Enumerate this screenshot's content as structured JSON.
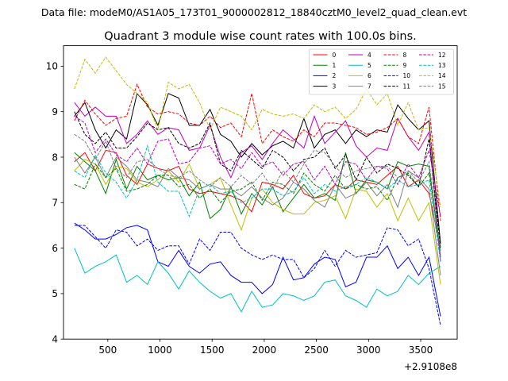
{
  "figure": {
    "suptitle": "Data file: modeM0/AS1A05_173T01_9000002812_18840cztM0_level2_quad_clean.evt",
    "title": "Quadrant 3 module wise count rates with 100.0s bins."
  },
  "chart_data": {
    "type": "line",
    "title": "Quadrant 3 module wise count rates with 100.0s bins.",
    "xlabel": "",
    "ylabel": "",
    "x_offset_label": "+2.9108e8",
    "xlim": [
      75,
      3850
    ],
    "ylim": [
      4,
      10.45
    ],
    "xticks": [
      500,
      1000,
      1500,
      2000,
      2500,
      3000,
      3500
    ],
    "xtick_labels": [
      "500",
      "1000",
      "1500",
      "2000",
      "2500",
      "3000",
      "3500"
    ],
    "yticks": [
      4,
      5,
      6,
      7,
      8,
      9,
      10
    ],
    "ytick_labels": [
      "4",
      "5",
      "6",
      "7",
      "8",
      "9",
      "10"
    ],
    "grid": false,
    "legend_position": "top-right",
    "x": [
      180,
      280,
      380,
      480,
      580,
      680,
      780,
      880,
      980,
      1080,
      1180,
      1280,
      1380,
      1480,
      1580,
      1680,
      1780,
      1880,
      1980,
      2080,
      2180,
      2280,
      2380,
      2480,
      2580,
      2680,
      2780,
      2880,
      2980,
      3080,
      3180,
      3280,
      3380,
      3480,
      3580,
      3690
    ],
    "series": [
      {
        "name": "0",
        "color": "#ff0000",
        "style": "solid",
        "values": [
          7.9,
          8.1,
          7.7,
          8.15,
          8.1,
          7.6,
          7.4,
          7.85,
          7.75,
          7.7,
          7.8,
          7.3,
          7.2,
          7.25,
          7.2,
          7.15,
          7.05,
          6.8,
          7.45,
          7.4,
          7.3,
          7.6,
          7.2,
          7.1,
          7.15,
          7.4,
          7.3,
          7.5,
          7.45,
          7.4,
          7.6,
          7.8,
          7.35,
          7.5,
          7.2,
          6.0
        ]
      },
      {
        "name": "1",
        "color": "#008000",
        "style": "solid",
        "values": [
          8.1,
          7.9,
          7.7,
          7.2,
          7.95,
          7.3,
          7.8,
          7.5,
          7.6,
          7.5,
          7.55,
          7.15,
          7.45,
          6.65,
          6.85,
          7.35,
          6.75,
          7.2,
          6.95,
          7.35,
          6.8,
          7.1,
          7.4,
          7.1,
          7.2,
          7.05,
          8.1,
          7.2,
          7.5,
          7.45,
          7.3,
          7.9,
          7.8,
          7.85,
          7.8,
          5.8
        ]
      },
      {
        "name": "2",
        "color": "#0000ff",
        "style": "solid",
        "values": [
          6.55,
          6.4,
          6.2,
          6.2,
          6.3,
          6.45,
          6.5,
          6.4,
          5.7,
          5.6,
          5.95,
          5.6,
          5.45,
          5.65,
          5.7,
          5.4,
          5.25,
          5.25,
          5.0,
          5.2,
          5.8,
          5.3,
          5.35,
          5.65,
          5.8,
          5.75,
          5.15,
          5.25,
          5.8,
          5.8,
          6.05,
          5.55,
          5.8,
          5.4,
          5.8,
          4.5
        ]
      },
      {
        "name": "3",
        "color": "#000000",
        "style": "solid",
        "values": [
          8.9,
          9.2,
          8.6,
          8.2,
          8.6,
          8.4,
          9.4,
          9.15,
          8.7,
          9.4,
          9.3,
          8.7,
          8.7,
          9.05,
          8.5,
          8.35,
          8.0,
          8.3,
          8.05,
          8.25,
          8.35,
          8.2,
          8.85,
          8.2,
          8.5,
          8.6,
          8.3,
          8.6,
          8.45,
          8.6,
          8.55,
          9.15,
          8.85,
          8.6,
          8.8,
          6.1
        ]
      },
      {
        "name": "4",
        "color": "#bf00bf",
        "style": "solid",
        "values": [
          9.2,
          8.9,
          9.1,
          8.9,
          8.9,
          8.3,
          8.5,
          8.8,
          8.5,
          8.65,
          8.6,
          8.15,
          8.2,
          8.7,
          8.0,
          7.55,
          8.1,
          8.25,
          7.95,
          8.3,
          8.6,
          8.4,
          8.2,
          8.9,
          8.3,
          8.55,
          8.8,
          8.25,
          8.0,
          8.2,
          8.15,
          8.85,
          8.45,
          8.15,
          8.55,
          5.7
        ]
      },
      {
        "name": "5",
        "color": "#00bfbf",
        "style": "solid",
        "values": [
          6.0,
          5.45,
          5.6,
          5.7,
          5.85,
          5.25,
          5.4,
          5.2,
          5.7,
          5.45,
          5.1,
          5.5,
          5.25,
          5.05,
          4.9,
          5.0,
          4.6,
          5.05,
          4.7,
          4.75,
          5.0,
          4.95,
          4.85,
          4.95,
          5.25,
          5.3,
          4.95,
          4.85,
          4.7,
          5.1,
          4.95,
          5.05,
          5.4,
          5.2,
          5.45,
          5.6
        ]
      },
      {
        "name": "6",
        "color": "#bfbf00",
        "style": "solid",
        "values": [
          7.7,
          7.95,
          7.85,
          7.4,
          7.8,
          7.75,
          7.45,
          7.35,
          7.5,
          7.7,
          7.45,
          7.85,
          7.3,
          7.4,
          7.55,
          6.95,
          6.4,
          7.1,
          7.3,
          7.0,
          6.85,
          6.75,
          6.75,
          7.0,
          7.05,
          7.15,
          6.65,
          7.3,
          7.25,
          6.9,
          7.2,
          6.6,
          7.1,
          6.6,
          7.0,
          5.2
        ]
      },
      {
        "name": "7",
        "color": "#808080",
        "style": "solid",
        "values": [
          8.0,
          7.65,
          8.0,
          7.55,
          8.0,
          7.8,
          7.5,
          7.45,
          7.35,
          7.75,
          7.55,
          7.5,
          7.3,
          7.4,
          7.3,
          7.3,
          7.15,
          7.35,
          7.1,
          6.95,
          7.1,
          7.45,
          7.3,
          7.05,
          6.9,
          7.4,
          7.1,
          7.2,
          7.45,
          7.15,
          7.4,
          6.9,
          7.7,
          7.55,
          7.3,
          5.4
        ]
      },
      {
        "name": "8",
        "color": "#ff0000",
        "style": "dashed",
        "values": [
          8.8,
          9.25,
          8.95,
          8.7,
          8.85,
          8.9,
          9.6,
          9.1,
          8.95,
          9.0,
          8.95,
          8.75,
          8.7,
          8.9,
          8.65,
          8.75,
          8.45,
          9.4,
          8.3,
          8.6,
          8.45,
          8.35,
          8.6,
          8.45,
          8.75,
          8.75,
          8.7,
          8.65,
          8.5,
          8.55,
          8.65,
          8.85,
          8.45,
          8.3,
          9.1,
          6.6
        ]
      },
      {
        "name": "9",
        "color": "#008000",
        "style": "dashed",
        "values": [
          7.4,
          7.3,
          7.85,
          7.55,
          7.75,
          7.25,
          7.3,
          7.4,
          7.6,
          7.6,
          7.35,
          7.4,
          7.1,
          7.3,
          7.0,
          7.25,
          7.3,
          7.45,
          7.05,
          7.45,
          7.4,
          7.2,
          7.65,
          7.4,
          7.25,
          7.6,
          7.3,
          7.4,
          7.3,
          7.35,
          7.05,
          7.55,
          7.65,
          7.35,
          7.65,
          5.95
        ]
      },
      {
        "name": "10",
        "color": "#0000ff",
        "style": "dashed",
        "values": [
          6.5,
          6.5,
          6.25,
          6.0,
          6.4,
          6.35,
          6.05,
          6.2,
          5.95,
          6.05,
          6.05,
          5.65,
          6.2,
          5.95,
          6.35,
          6.35,
          6.0,
          5.85,
          5.75,
          5.85,
          5.75,
          5.75,
          5.35,
          5.55,
          5.95,
          5.6,
          5.95,
          5.8,
          5.85,
          5.9,
          6.45,
          6.4,
          6.05,
          6.2,
          5.55,
          4.3
        ]
      },
      {
        "name": "11",
        "color": "#000000",
        "style": "dashed",
        "values": [
          9.0,
          8.5,
          8.3,
          8.55,
          8.2,
          8.2,
          8.45,
          8.75,
          8.6,
          8.65,
          8.3,
          8.2,
          8.3,
          8.75,
          7.85,
          7.7,
          8.15,
          7.95,
          7.75,
          8.15,
          8.0,
          7.7,
          7.95,
          8.0,
          8.2,
          7.75,
          8.05,
          7.5,
          8.0,
          7.65,
          7.85,
          7.75,
          7.6,
          7.35,
          8.4,
          6.0
        ]
      },
      {
        "name": "12",
        "color": "#bf00bf",
        "style": "dashed",
        "values": [
          8.9,
          8.75,
          8.1,
          8.4,
          8.05,
          7.9,
          8.2,
          7.85,
          8.35,
          8.4,
          7.85,
          7.9,
          8.2,
          8.25,
          7.85,
          7.95,
          7.75,
          8.1,
          7.8,
          7.9,
          7.6,
          7.85,
          7.9,
          7.5,
          7.8,
          7.4,
          7.9,
          7.85,
          7.5,
          7.8,
          7.75,
          7.4,
          7.85,
          7.55,
          8.15,
          6.7
        ]
      },
      {
        "name": "13",
        "color": "#00bfbf",
        "style": "dashed",
        "values": [
          7.7,
          7.55,
          8.05,
          7.65,
          7.45,
          7.1,
          7.5,
          8.25,
          7.45,
          7.25,
          7.25,
          6.7,
          7.3,
          7.4,
          7.2,
          7.25,
          7.0,
          7.1,
          7.3,
          7.3,
          7.15,
          7.25,
          7.55,
          7.2,
          7.4,
          7.25,
          7.35,
          7.4,
          7.55,
          7.45,
          7.3,
          7.5,
          7.35,
          7.4,
          7.5,
          5.7
        ]
      },
      {
        "name": "14",
        "color": "#bfbf00",
        "style": "dashed",
        "values": [
          9.5,
          10.15,
          9.85,
          10.2,
          9.9,
          9.6,
          9.4,
          9.2,
          8.6,
          9.65,
          9.5,
          9.6,
          9.2,
          8.6,
          9.1,
          9.0,
          8.9,
          8.6,
          9.05,
          8.95,
          8.9,
          8.95,
          8.85,
          9.15,
          9.0,
          9.1,
          8.85,
          9.05,
          9.5,
          9.15,
          9.4,
          8.7,
          9.2,
          8.6,
          8.65,
          6.9
        ]
      },
      {
        "name": "15",
        "color": "#808080",
        "style": "dashed",
        "values": [
          8.5,
          8.35,
          7.95,
          8.35,
          7.75,
          7.55,
          7.9,
          7.95,
          7.75,
          7.6,
          7.55,
          7.7,
          7.5,
          7.35,
          7.55,
          7.35,
          7.6,
          7.4,
          7.65,
          7.3,
          7.7,
          7.45,
          7.85,
          8.15,
          8.1,
          7.8,
          7.55,
          7.7,
          7.75,
          7.8,
          7.8,
          7.55,
          7.7,
          7.45,
          7.9,
          5.9
        ]
      }
    ]
  }
}
